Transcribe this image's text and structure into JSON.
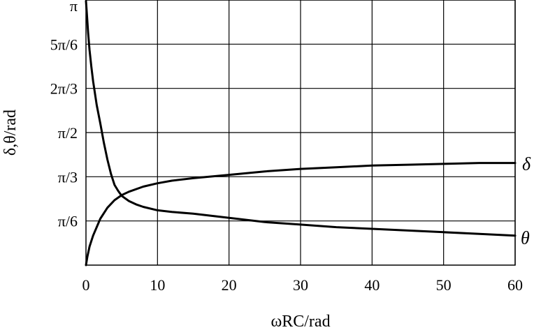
{
  "chart_data": {
    "type": "line",
    "xlabel": "ωRC/rad",
    "ylabel": "δ,θ/rad",
    "xlim": [
      0,
      60
    ],
    "ylim": [
      0,
      3.1416
    ],
    "grid": true,
    "x_ticks": [
      0,
      10,
      20,
      30,
      40,
      50,
      60
    ],
    "x_tick_labels": [
      "0",
      "10",
      "20",
      "30",
      "40",
      "50",
      "60"
    ],
    "y_ticks": [
      0.5236,
      1.0472,
      1.5708,
      2.0944,
      2.618,
      3.1416
    ],
    "y_tick_labels": [
      "π/6",
      "π/3",
      "π/2",
      "2π/3",
      "5π/6",
      "π"
    ],
    "series": [
      {
        "name": "δ",
        "x": [
          0,
          0.2,
          0.5,
          1,
          2,
          3,
          4,
          5,
          6,
          8,
          10,
          12,
          15,
          20,
          25,
          30,
          35,
          40,
          45,
          50,
          55,
          60
        ],
        "y": [
          0.0,
          0.1,
          0.22,
          0.35,
          0.55,
          0.68,
          0.77,
          0.83,
          0.87,
          0.93,
          0.97,
          1.0,
          1.03,
          1.07,
          1.11,
          1.14,
          1.16,
          1.18,
          1.19,
          1.2,
          1.21,
          1.21
        ]
      },
      {
        "name": "θ",
        "x": [
          0,
          0.15,
          0.3,
          0.5,
          0.75,
          1,
          1.5,
          2,
          2.5,
          3,
          3.5,
          4,
          4.5,
          5,
          6,
          7,
          8,
          10,
          12,
          15,
          20,
          25,
          30,
          35,
          40,
          45,
          50,
          55,
          60
        ],
        "y": [
          3.13,
          2.95,
          2.75,
          2.55,
          2.35,
          2.18,
          1.9,
          1.68,
          1.45,
          1.25,
          1.08,
          0.95,
          0.88,
          0.82,
          0.76,
          0.72,
          0.69,
          0.65,
          0.63,
          0.61,
          0.56,
          0.51,
          0.48,
          0.45,
          0.43,
          0.41,
          0.39,
          0.37,
          0.35
        ]
      }
    ],
    "series_label_text": [
      "δ",
      "θ"
    ]
  }
}
